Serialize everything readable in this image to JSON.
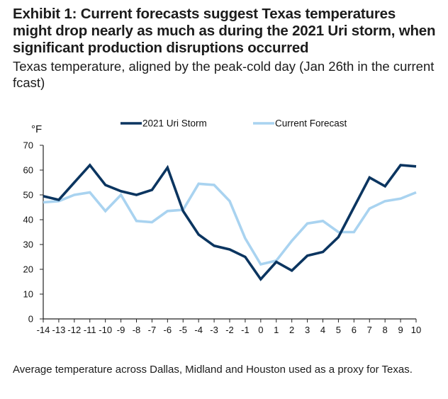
{
  "title": "Exhibit 1: Current forecasts suggest Texas temperatures might drop nearly as much as during the 2021 Uri storm, when significant production disruptions occurred",
  "subtitle": "Texas temperature, aligned by the peak-cold day (Jan 26th in the current fcast)",
  "footnote": "Average temperature across Dallas, Midland and Houston used as a proxy for Texas.",
  "chart_data": {
    "type": "line",
    "title": "",
    "xlabel": "",
    "ylabel": "°F",
    "x": [
      -14,
      -13,
      -12,
      -11,
      -10,
      -9,
      -8,
      -7,
      -6,
      -5,
      -4,
      -3,
      -2,
      -1,
      0,
      1,
      2,
      3,
      4,
      5,
      6,
      7,
      8,
      9,
      10
    ],
    "xlim": [
      -14,
      10
    ],
    "ylim": [
      0,
      70
    ],
    "yticks": [
      0,
      10,
      20,
      30,
      40,
      50,
      60,
      70
    ],
    "grid": false,
    "legend_position": "top",
    "series": [
      {
        "name": "2021 Uri Storm",
        "color": "#0b3560",
        "values": [
          49.5,
          48,
          55,
          62,
          54,
          51.5,
          50,
          52,
          61,
          43.5,
          34,
          29.5,
          28,
          25,
          16,
          23,
          19.5,
          25.5,
          27,
          33,
          45,
          57,
          53.5,
          62,
          61.5
        ]
      },
      {
        "name": "Current Forecast",
        "color": "#a9d3f0",
        "values": [
          47,
          47.5,
          50,
          51,
          43.5,
          50,
          39.5,
          39,
          43.5,
          44,
          54.5,
          54,
          47.5,
          32.5,
          22,
          23.5,
          31.5,
          38.5,
          39.5,
          35,
          35,
          44.5,
          47.5,
          48.5,
          51
        ]
      }
    ]
  }
}
